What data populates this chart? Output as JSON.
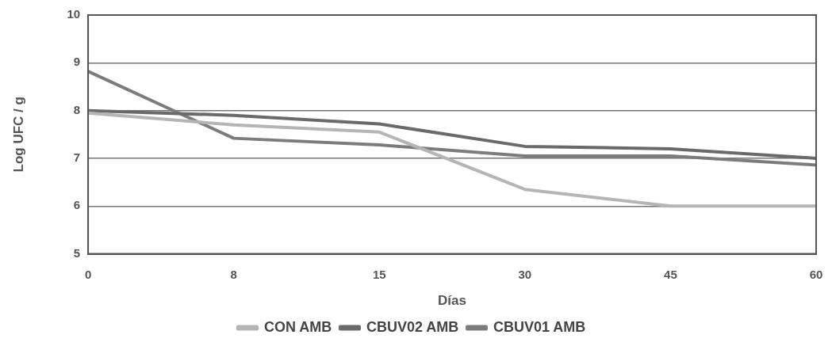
{
  "chart_data": {
    "type": "line",
    "xlabel": "Días",
    "ylabel": "Log UFC / g",
    "categories": [
      "0",
      "8",
      "15",
      "30",
      "45",
      "60"
    ],
    "series": [
      {
        "name": "CON AMB",
        "color": "#b5b5b5",
        "values": [
          7.95,
          7.7,
          7.55,
          6.35,
          6.0,
          6.0
        ]
      },
      {
        "name": "CBUV02 AMB",
        "color": "#6a6a6a",
        "values": [
          8.0,
          7.9,
          7.72,
          7.25,
          7.2,
          7.0
        ]
      },
      {
        "name": "CBUV01 AMB",
        "color": "#7c7c7c",
        "values": [
          8.82,
          7.42,
          7.28,
          7.05,
          7.05,
          6.86
        ]
      }
    ],
    "ylim": [
      5,
      10
    ],
    "yticks": [
      5,
      6,
      7,
      8,
      9,
      10
    ],
    "grid": "y",
    "legend": "bottom",
    "marker": "none",
    "line_style": "solid"
  }
}
